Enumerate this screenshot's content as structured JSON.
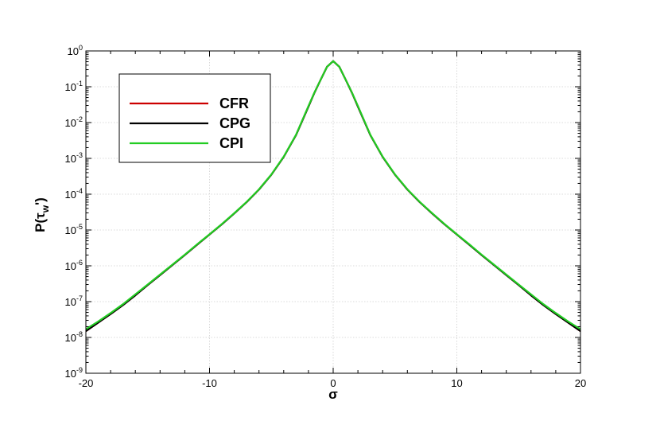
{
  "chart_data": {
    "type": "line",
    "title": "",
    "xlabel": "σ",
    "ylabel_parts": {
      "base": "P(τ",
      "sub": "w",
      "suffix": "')"
    },
    "xlim": [
      -20,
      20
    ],
    "ylim": [
      1e-09,
      1
    ],
    "yscale": "log",
    "grid": true,
    "legend_position": "top-left",
    "x_ticks": [
      {
        "value": -20,
        "label": "-20"
      },
      {
        "value": -10,
        "label": "-10"
      },
      {
        "value": 0,
        "label": "0"
      },
      {
        "value": 10,
        "label": "10"
      },
      {
        "value": 20,
        "label": "20"
      }
    ],
    "y_ticks": [
      {
        "exp": 0,
        "base": "10",
        "sup": "0"
      },
      {
        "exp": -1,
        "base": "10",
        "sup": "-1"
      },
      {
        "exp": -2,
        "base": "10",
        "sup": "-2"
      },
      {
        "exp": -3,
        "base": "10",
        "sup": "-3"
      },
      {
        "exp": -4,
        "base": "10",
        "sup": "-4"
      },
      {
        "exp": -5,
        "base": "10",
        "sup": "-5"
      },
      {
        "exp": -6,
        "base": "10",
        "sup": "-6"
      },
      {
        "exp": -7,
        "base": "10",
        "sup": "-7"
      },
      {
        "exp": -8,
        "base": "10",
        "sup": "-8"
      },
      {
        "exp": -9,
        "base": "10",
        "sup": "-9"
      }
    ],
    "series": [
      {
        "name": "CFR",
        "color": "#cc0000",
        "x": [
          -20,
          -19,
          -18,
          -17,
          -16,
          -15,
          -14,
          -13,
          -12,
          -11,
          -10,
          -9,
          -8,
          -7,
          -6,
          -5,
          -4,
          -3,
          -2,
          -1.5,
          -1,
          -0.5,
          0,
          0.5,
          1,
          1.5,
          2,
          3,
          4,
          5,
          6,
          7,
          8,
          9,
          10,
          11,
          12,
          13,
          14,
          15,
          16,
          17,
          18,
          19,
          20
        ],
        "y": [
          1.5e-08,
          2.6e-08,
          4.5e-08,
          8e-08,
          1.5e-07,
          2.9e-07,
          5.5e-07,
          1.05e-06,
          2e-06,
          3.9e-06,
          7.5e-06,
          1.45e-05,
          2.9e-05,
          6e-05,
          0.000135,
          0.00035,
          0.0011,
          0.0045,
          0.028,
          0.07,
          0.16,
          0.36,
          0.52,
          0.36,
          0.16,
          0.07,
          0.028,
          0.0045,
          0.0011,
          0.00035,
          0.000135,
          6e-05,
          2.9e-05,
          1.45e-05,
          7.5e-06,
          3.9e-06,
          2e-06,
          1.05e-06,
          5.5e-07,
          2.9e-07,
          1.5e-07,
          8e-08,
          4.5e-08,
          2.6e-08,
          1.5e-08
        ]
      },
      {
        "name": "CPG",
        "color": "#000000",
        "x": [
          -20,
          -19,
          -18,
          -17,
          -16,
          -15,
          -14,
          -13,
          -12,
          -11,
          -10,
          -9,
          -8,
          -7,
          -6,
          -5,
          -4,
          -3,
          -2,
          -1.5,
          -1,
          -0.5,
          0,
          0.5,
          1,
          1.5,
          2,
          3,
          4,
          5,
          6,
          7,
          8,
          9,
          10,
          11,
          12,
          13,
          14,
          15,
          16,
          17,
          18,
          19,
          20
        ],
        "y": [
          1.5e-08,
          2.6e-08,
          4.5e-08,
          8e-08,
          1.5e-07,
          2.9e-07,
          5.5e-07,
          1.05e-06,
          2e-06,
          3.9e-06,
          7.5e-06,
          1.45e-05,
          2.9e-05,
          6e-05,
          0.000135,
          0.00035,
          0.0011,
          0.0045,
          0.028,
          0.07,
          0.16,
          0.36,
          0.52,
          0.36,
          0.16,
          0.07,
          0.028,
          0.0045,
          0.0011,
          0.00035,
          0.000135,
          6e-05,
          2.9e-05,
          1.45e-05,
          7.5e-06,
          3.9e-06,
          2e-06,
          1.05e-06,
          5.5e-07,
          2.9e-07,
          1.5e-07,
          8e-08,
          4.5e-08,
          2.6e-08,
          1.5e-08
        ]
      },
      {
        "name": "CPI",
        "color": "#22cc22",
        "x": [
          -20,
          -19,
          -18,
          -17,
          -16,
          -15,
          -14,
          -13,
          -12,
          -11,
          -10,
          -9,
          -8,
          -7,
          -6,
          -5,
          -4,
          -3,
          -2,
          -1.5,
          -1,
          -0.5,
          0,
          0.5,
          1,
          1.5,
          2,
          3,
          4,
          5,
          6,
          7,
          8,
          9,
          10,
          11,
          12,
          13,
          14,
          15,
          16,
          17,
          18,
          19,
          20
        ],
        "y": [
          1.7e-08,
          2.8e-08,
          4.8e-08,
          8.5e-08,
          1.6e-07,
          3e-07,
          5.7e-07,
          1.08e-06,
          2.05e-06,
          4e-06,
          7.6e-06,
          1.47e-05,
          2.95e-05,
          6.1e-05,
          0.000137,
          0.000355,
          0.00112,
          0.0046,
          0.029,
          0.071,
          0.16,
          0.36,
          0.52,
          0.36,
          0.16,
          0.071,
          0.029,
          0.0046,
          0.00112,
          0.000355,
          0.000137,
          6.1e-05,
          2.95e-05,
          1.47e-05,
          7.6e-06,
          4e-06,
          2.05e-06,
          1.08e-06,
          5.7e-07,
          3e-07,
          1.6e-07,
          8.5e-08,
          4.8e-08,
          2.8e-08,
          1.7e-08
        ]
      }
    ]
  }
}
